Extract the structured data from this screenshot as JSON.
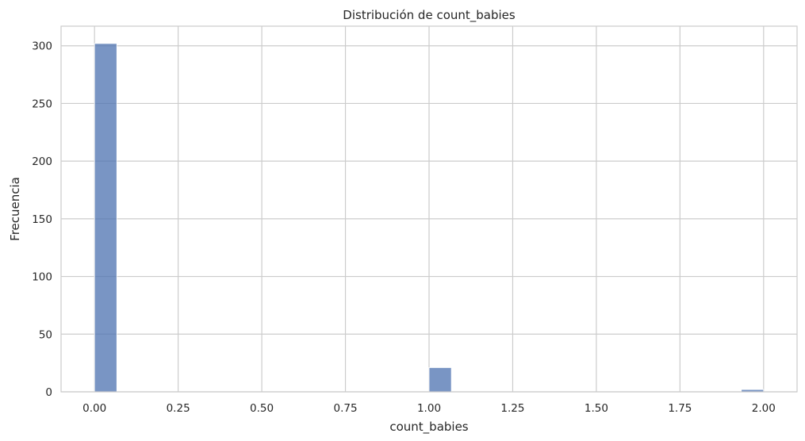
{
  "chart_data": {
    "type": "bar",
    "title": "Distribución de count_babies",
    "xlabel": "count_babies",
    "ylabel": "Frecuencia",
    "xlim": [
      -0.1,
      2.1
    ],
    "ylim": [
      0,
      317
    ],
    "xticks": [
      0.0,
      0.25,
      0.5,
      0.75,
      1.0,
      1.25,
      1.5,
      1.75,
      2.0
    ],
    "xtick_labels": [
      "0.00",
      "0.25",
      "0.50",
      "0.75",
      "1.00",
      "1.25",
      "1.50",
      "1.75",
      "2.00"
    ],
    "yticks": [
      0,
      50,
      100,
      150,
      200,
      250,
      300
    ],
    "ytick_labels": [
      "0",
      "50",
      "100",
      "150",
      "200",
      "250",
      "300"
    ],
    "bins": [
      {
        "start": 0.0,
        "end": 0.0667,
        "value": 302
      },
      {
        "start": 1.0,
        "end": 1.0667,
        "value": 21
      },
      {
        "start": 1.9333,
        "end": 2.0,
        "value": 2
      }
    ],
    "grid": true,
    "bar_color": "#4c72b0"
  }
}
